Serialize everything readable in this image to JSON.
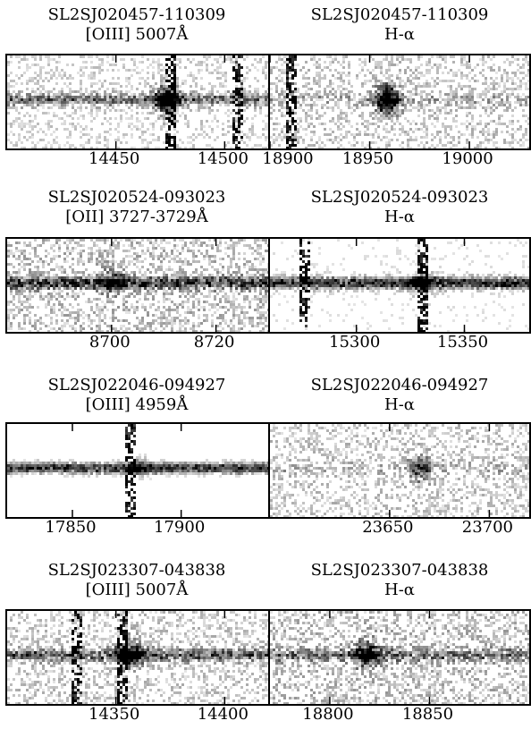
{
  "chart_data": [
    {
      "type": "spectrum-2d",
      "object": "SL2SJ020457-110309",
      "line": "[OIII] 5007Å",
      "xlim": [
        14400,
        14520
      ],
      "xticks": [
        14450,
        14500
      ],
      "tick_labels": [
        "14450",
        "14500"
      ],
      "emission_center": 14473,
      "skyline_x": [
        14474,
        14506
      ],
      "trace_strength": 0.5,
      "emission_strength": 0.9,
      "noise": 0.45
    },
    {
      "type": "spectrum-2d",
      "object": "SL2SJ020457-110309",
      "line": "H-α",
      "xlim": [
        18900,
        19030
      ],
      "xticks": [
        18900,
        18950,
        19000
      ],
      "tick_labels": [
        "18900",
        "18950",
        "19000"
      ],
      "emission_center": 18958,
      "skyline_x": [
        18910
      ],
      "trace_strength": 0.2,
      "emission_strength": 1.0,
      "noise": 0.5
    },
    {
      "type": "spectrum-2d",
      "object": "SL2SJ020524-093023",
      "line": "[OII] 3727-3729Å",
      "xlim": [
        8680,
        8730
      ],
      "xticks": [
        8700,
        8720
      ],
      "tick_labels": [
        "8700",
        "8720"
      ],
      "emission_center": 8700,
      "skyline_x": [],
      "trace_strength": 0.7,
      "emission_strength": 0.4,
      "noise": 0.55
    },
    {
      "type": "spectrum-2d",
      "object": "SL2SJ020524-093023",
      "line": "H-α",
      "xlim": [
        15260,
        15380
      ],
      "xticks": [
        15300,
        15350
      ],
      "tick_labels": [
        "15300",
        "15350"
      ],
      "emission_center": 15330,
      "skyline_x": [
        15275,
        15330
      ],
      "trace_strength": 0.85,
      "emission_strength": 0.4,
      "noise": 0.35
    },
    {
      "type": "spectrum-2d",
      "object": "SL2SJ022046-094927",
      "line": "[OIII] 4959Å",
      "xlim": [
        17820,
        17940
      ],
      "xticks": [
        17850,
        17900
      ],
      "tick_labels": [
        "17850",
        "17900"
      ],
      "emission_center": 17880,
      "skyline_x": [
        17876
      ],
      "trace_strength": 0.85,
      "emission_strength": 0.3,
      "noise": 0.25
    },
    {
      "type": "spectrum-2d",
      "object": "SL2SJ022046-094927",
      "line": "H-α",
      "xlim": [
        23590,
        23720
      ],
      "xticks": [
        23650,
        23700
      ],
      "tick_labels": [
        "23650",
        "23700"
      ],
      "emission_center": 23665,
      "skyline_x": [],
      "trace_strength": 0.15,
      "emission_strength": 0.5,
      "noise": 0.5
    },
    {
      "type": "spectrum-2d",
      "object": "SL2SJ023307-043838",
      "line": "[OIII] 5007Å",
      "xlim": [
        14300,
        14420
      ],
      "xticks": [
        14350,
        14400
      ],
      "tick_labels": [
        "14350",
        "14400"
      ],
      "emission_center": 14356,
      "skyline_x": [
        14331,
        14352
      ],
      "trace_strength": 0.55,
      "emission_strength": 0.8,
      "noise": 0.5
    },
    {
      "type": "spectrum-2d",
      "object": "SL2SJ023307-043838",
      "line": "H-α",
      "xlim": [
        18770,
        18900
      ],
      "xticks": [
        18800,
        18850
      ],
      "tick_labels": [
        "18800",
        "18850"
      ],
      "emission_center": 18818,
      "skyline_x": [],
      "trace_strength": 0.45,
      "emission_strength": 0.7,
      "noise": 0.55
    }
  ]
}
